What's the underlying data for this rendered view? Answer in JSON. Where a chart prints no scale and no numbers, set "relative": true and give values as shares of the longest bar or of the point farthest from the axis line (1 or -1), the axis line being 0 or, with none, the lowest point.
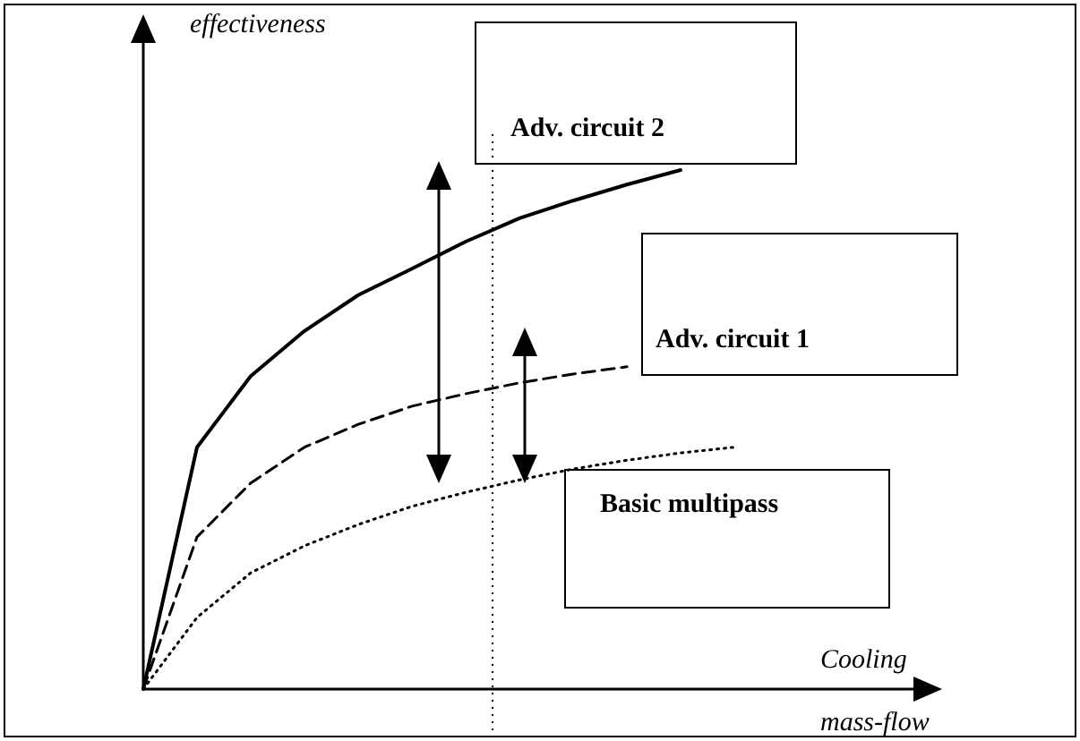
{
  "chart_data": {
    "type": "line",
    "relative": true,
    "xlabel": "Cooling\nmass-flow",
    "ylabel": "effectiveness",
    "marker": "none",
    "categories": [
      null,
      null,
      null,
      null,
      null,
      null,
      null,
      null,
      null,
      null,
      null,
      null,
      null
    ],
    "series": [
      {
        "name": "Adv. circuit 2",
        "color": "#000000",
        "line_style": "solid",
        "values": [
          0,
          0.466,
          0.603,
          0.69,
          0.759,
          0.81,
          0.862,
          0.907,
          0.941,
          0.972,
          1,
          null,
          null
        ]
      },
      {
        "name": "Adv. circuit 1",
        "color": "#000000",
        "line_style": "dashed",
        "values": [
          0,
          0.293,
          0.397,
          0.466,
          0.51,
          0.545,
          0.569,
          0.59,
          0.607,
          0.621,
          null,
          null,
          null
        ]
      },
      {
        "name": "Basic multipass",
        "color": "#000000",
        "line_style": "dotted",
        "values": [
          0,
          0.138,
          0.224,
          0.276,
          0.317,
          0.352,
          0.379,
          0.403,
          0.424,
          0.441,
          0.455,
          0.466,
          null
        ]
      }
    ]
  }
}
